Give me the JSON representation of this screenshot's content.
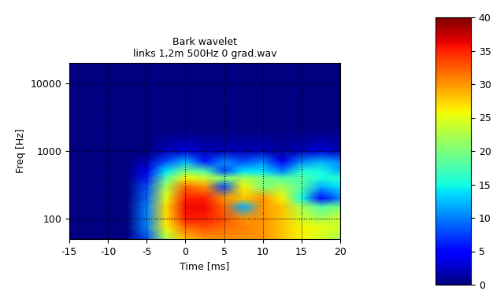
{
  "chart_data": {
    "type": "heatmap",
    "title": "Bark wavelet",
    "subtitle": "links 1,2m 500Hz 0 grad.wav",
    "x_label": "Time [ms]",
    "y_label": "Freq [Hz]",
    "x": [
      -15,
      -12.5,
      -10,
      -7.5,
      -5,
      -2.5,
      0,
      2.5,
      5,
      7.5,
      10,
      12.5,
      15,
      17.5,
      20
    ],
    "y": [
      50,
      75,
      100,
      150,
      200,
      300,
      400,
      500,
      700,
      1000,
      2000,
      20000
    ],
    "values": [
      [
        0,
        0,
        0,
        0,
        8,
        22,
        28,
        30,
        30,
        30,
        30,
        28,
        26,
        24,
        22
      ],
      [
        0,
        0,
        0,
        0,
        10,
        26,
        32,
        33,
        32,
        31,
        30,
        28,
        26,
        25,
        24
      ],
      [
        0,
        0,
        0,
        0,
        10,
        27,
        35,
        35,
        33,
        30,
        30,
        28,
        24,
        22,
        24
      ],
      [
        0,
        0,
        0,
        0,
        10,
        27,
        36,
        36,
        32,
        12,
        30,
        28,
        22,
        18,
        20
      ],
      [
        0,
        0,
        0,
        0,
        9,
        25,
        35,
        35,
        30,
        28,
        30,
        26,
        15,
        5,
        10
      ],
      [
        0,
        0,
        0,
        0,
        8,
        22,
        32,
        30,
        8,
        26,
        20,
        22,
        18,
        12,
        14
      ],
      [
        0,
        0,
        0,
        0,
        6,
        18,
        26,
        24,
        20,
        22,
        20,
        18,
        18,
        15,
        16
      ],
      [
        0,
        0,
        0,
        0,
        4,
        14,
        20,
        18,
        8,
        14,
        14,
        10,
        16,
        15,
        12
      ],
      [
        0,
        0,
        0,
        0,
        2,
        8,
        12,
        6,
        10,
        8,
        10,
        4,
        10,
        12,
        10
      ],
      [
        0,
        0,
        0,
        0,
        0,
        2,
        3,
        2,
        2,
        2,
        2,
        1,
        2,
        3,
        2
      ],
      [
        0,
        0,
        0,
        0,
        0,
        0,
        0,
        0,
        0,
        0,
        0,
        0,
        0,
        0,
        0
      ],
      [
        0,
        0,
        0,
        0,
        0,
        0,
        0,
        0,
        0,
        0,
        0,
        0,
        0,
        0,
        0
      ]
    ],
    "xlim": [
      -15,
      20
    ],
    "xticks": [
      -15,
      -10,
      -5,
      0,
      5,
      10,
      15,
      20
    ],
    "ylim": [
      50,
      20000
    ],
    "yticks": [
      100,
      1000,
      10000
    ],
    "log": "y",
    "grid": true,
    "colorbar_range": [
      0,
      40
    ],
    "colorbar_ticks": [
      0,
      5,
      10,
      15,
      20,
      25,
      30,
      35,
      40
    ]
  }
}
